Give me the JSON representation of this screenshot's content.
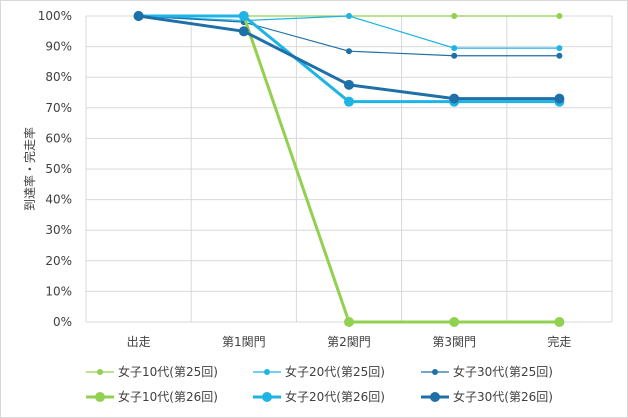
{
  "chart_data": {
    "type": "line",
    "title": "",
    "xlabel": "",
    "ylabel": "到達率・完走率",
    "categories": [
      "出走",
      "第1関門",
      "第2関門",
      "第3関門",
      "完走"
    ],
    "ylim": [
      0,
      100
    ],
    "yticks": [
      "0%",
      "10%",
      "20%",
      "30%",
      "40%",
      "50%",
      "60%",
      "70%",
      "80%",
      "90%",
      "100%"
    ],
    "grid": true,
    "legend_position": "bottom",
    "series": [
      {
        "name": "女子10代(第25回)",
        "values": [
          100,
          100,
          100,
          100,
          100
        ],
        "color": "#92d050",
        "style": "thin"
      },
      {
        "name": "女子20代(第25回)",
        "values": [
          100,
          98.5,
          100,
          89.5,
          89.5
        ],
        "color": "#1fb4e6",
        "style": "thin"
      },
      {
        "name": "女子30代(第25回)",
        "values": [
          100,
          98,
          88.5,
          87,
          87
        ],
        "color": "#1f6fa8",
        "style": "thin"
      },
      {
        "name": "女子10代(第26回)",
        "values": [
          100,
          100,
          0,
          0,
          0
        ],
        "color": "#92d050",
        "style": "thick"
      },
      {
        "name": "女子20代(第26回)",
        "values": [
          100,
          100,
          72,
          72,
          72
        ],
        "color": "#1fb4e6",
        "style": "thick"
      },
      {
        "name": "女子30代(第26回)",
        "values": [
          100,
          95,
          77.5,
          73,
          73
        ],
        "color": "#1f6fa8",
        "style": "thick"
      }
    ]
  }
}
